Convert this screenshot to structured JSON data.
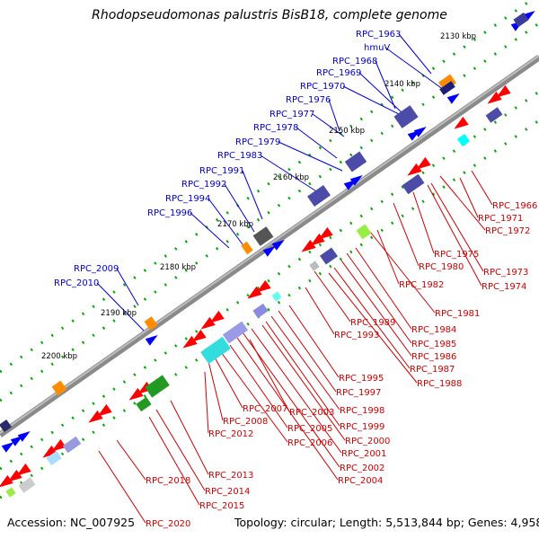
{
  "title": "Rhodopseudomonas palustris BisB18, complete genome",
  "footer": {
    "accession": "Accession: NC_007925",
    "summary": "Topology: circular; Length: 5,513,844 bp; Genes: 4,958"
  },
  "kbp_labels": [
    "2130 kbp",
    "2140 kbp",
    "2150 kbp",
    "2160 kbp",
    "2170 kbp",
    "2180 kbp",
    "2190 kbp",
    "2200 kbp"
  ],
  "left_genes": [
    "RPC_1963",
    "hmuV",
    "RPC_1968",
    "RPC_1969",
    "RPC_1970",
    "RPC_1976",
    "RPC_1977",
    "RPC_1978",
    "RPC_1979",
    "RPC_1983",
    "RPC_1991",
    "RPC_1992",
    "RPC_1994",
    "RPC_1996",
    "RPC_2009",
    "RPC_2010"
  ],
  "right_genes": [
    "RPC_1966",
    "RPC_1971",
    "RPC_1972",
    "RPC_1973",
    "RPC_1974",
    "RPC_1975",
    "RPC_1980",
    "RPC_1982",
    "RPC_1981",
    "RPC_1984",
    "RPC_1985",
    "RPC_1986",
    "RPC_1987",
    "RPC_1988",
    "RPC_1989",
    "RPC_1993",
    "RPC_1995",
    "RPC_1997",
    "RPC_1998",
    "RPC_1999",
    "RPC_2000",
    "RPC_2001",
    "RPC_2002",
    "RPC_2003",
    "RPC_2004",
    "RPC_2005",
    "RPC_2006",
    "RPC_2007",
    "RPC_2008",
    "RPC_2012",
    "RPC_2013",
    "RPC_2014",
    "RPC_2015",
    "RPC_2018",
    "RPC_2020"
  ],
  "colors": {
    "backbone": "#8a8a8a",
    "left_label": "#0000cc",
    "right_label": "#cc0000",
    "forward_gene": "#0000ff",
    "reverse_gene": "#ff0000",
    "tick": "#00aa00"
  }
}
